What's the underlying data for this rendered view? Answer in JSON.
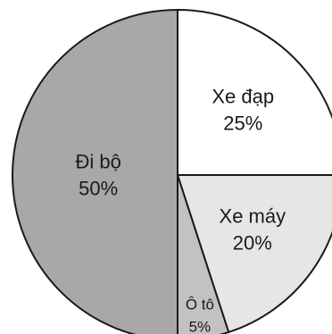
{
  "chart_data": {
    "type": "pie",
    "start": "top, clockwise",
    "slices": [
      {
        "label": "Xe đạp",
        "value": 25,
        "value_text": "25%",
        "color": "#ffffff"
      },
      {
        "label": "Xe máy",
        "value": 20,
        "value_text": "20%",
        "color": "#e6e6e6"
      },
      {
        "label": "Ô tô",
        "value": 5,
        "value_text": "5%",
        "color": "#c2c2c2"
      },
      {
        "label": "Đi bộ",
        "value": 50,
        "value_text": "50%",
        "color": "#a8a8a8"
      }
    ],
    "outline_color": "#1a1a1a"
  }
}
